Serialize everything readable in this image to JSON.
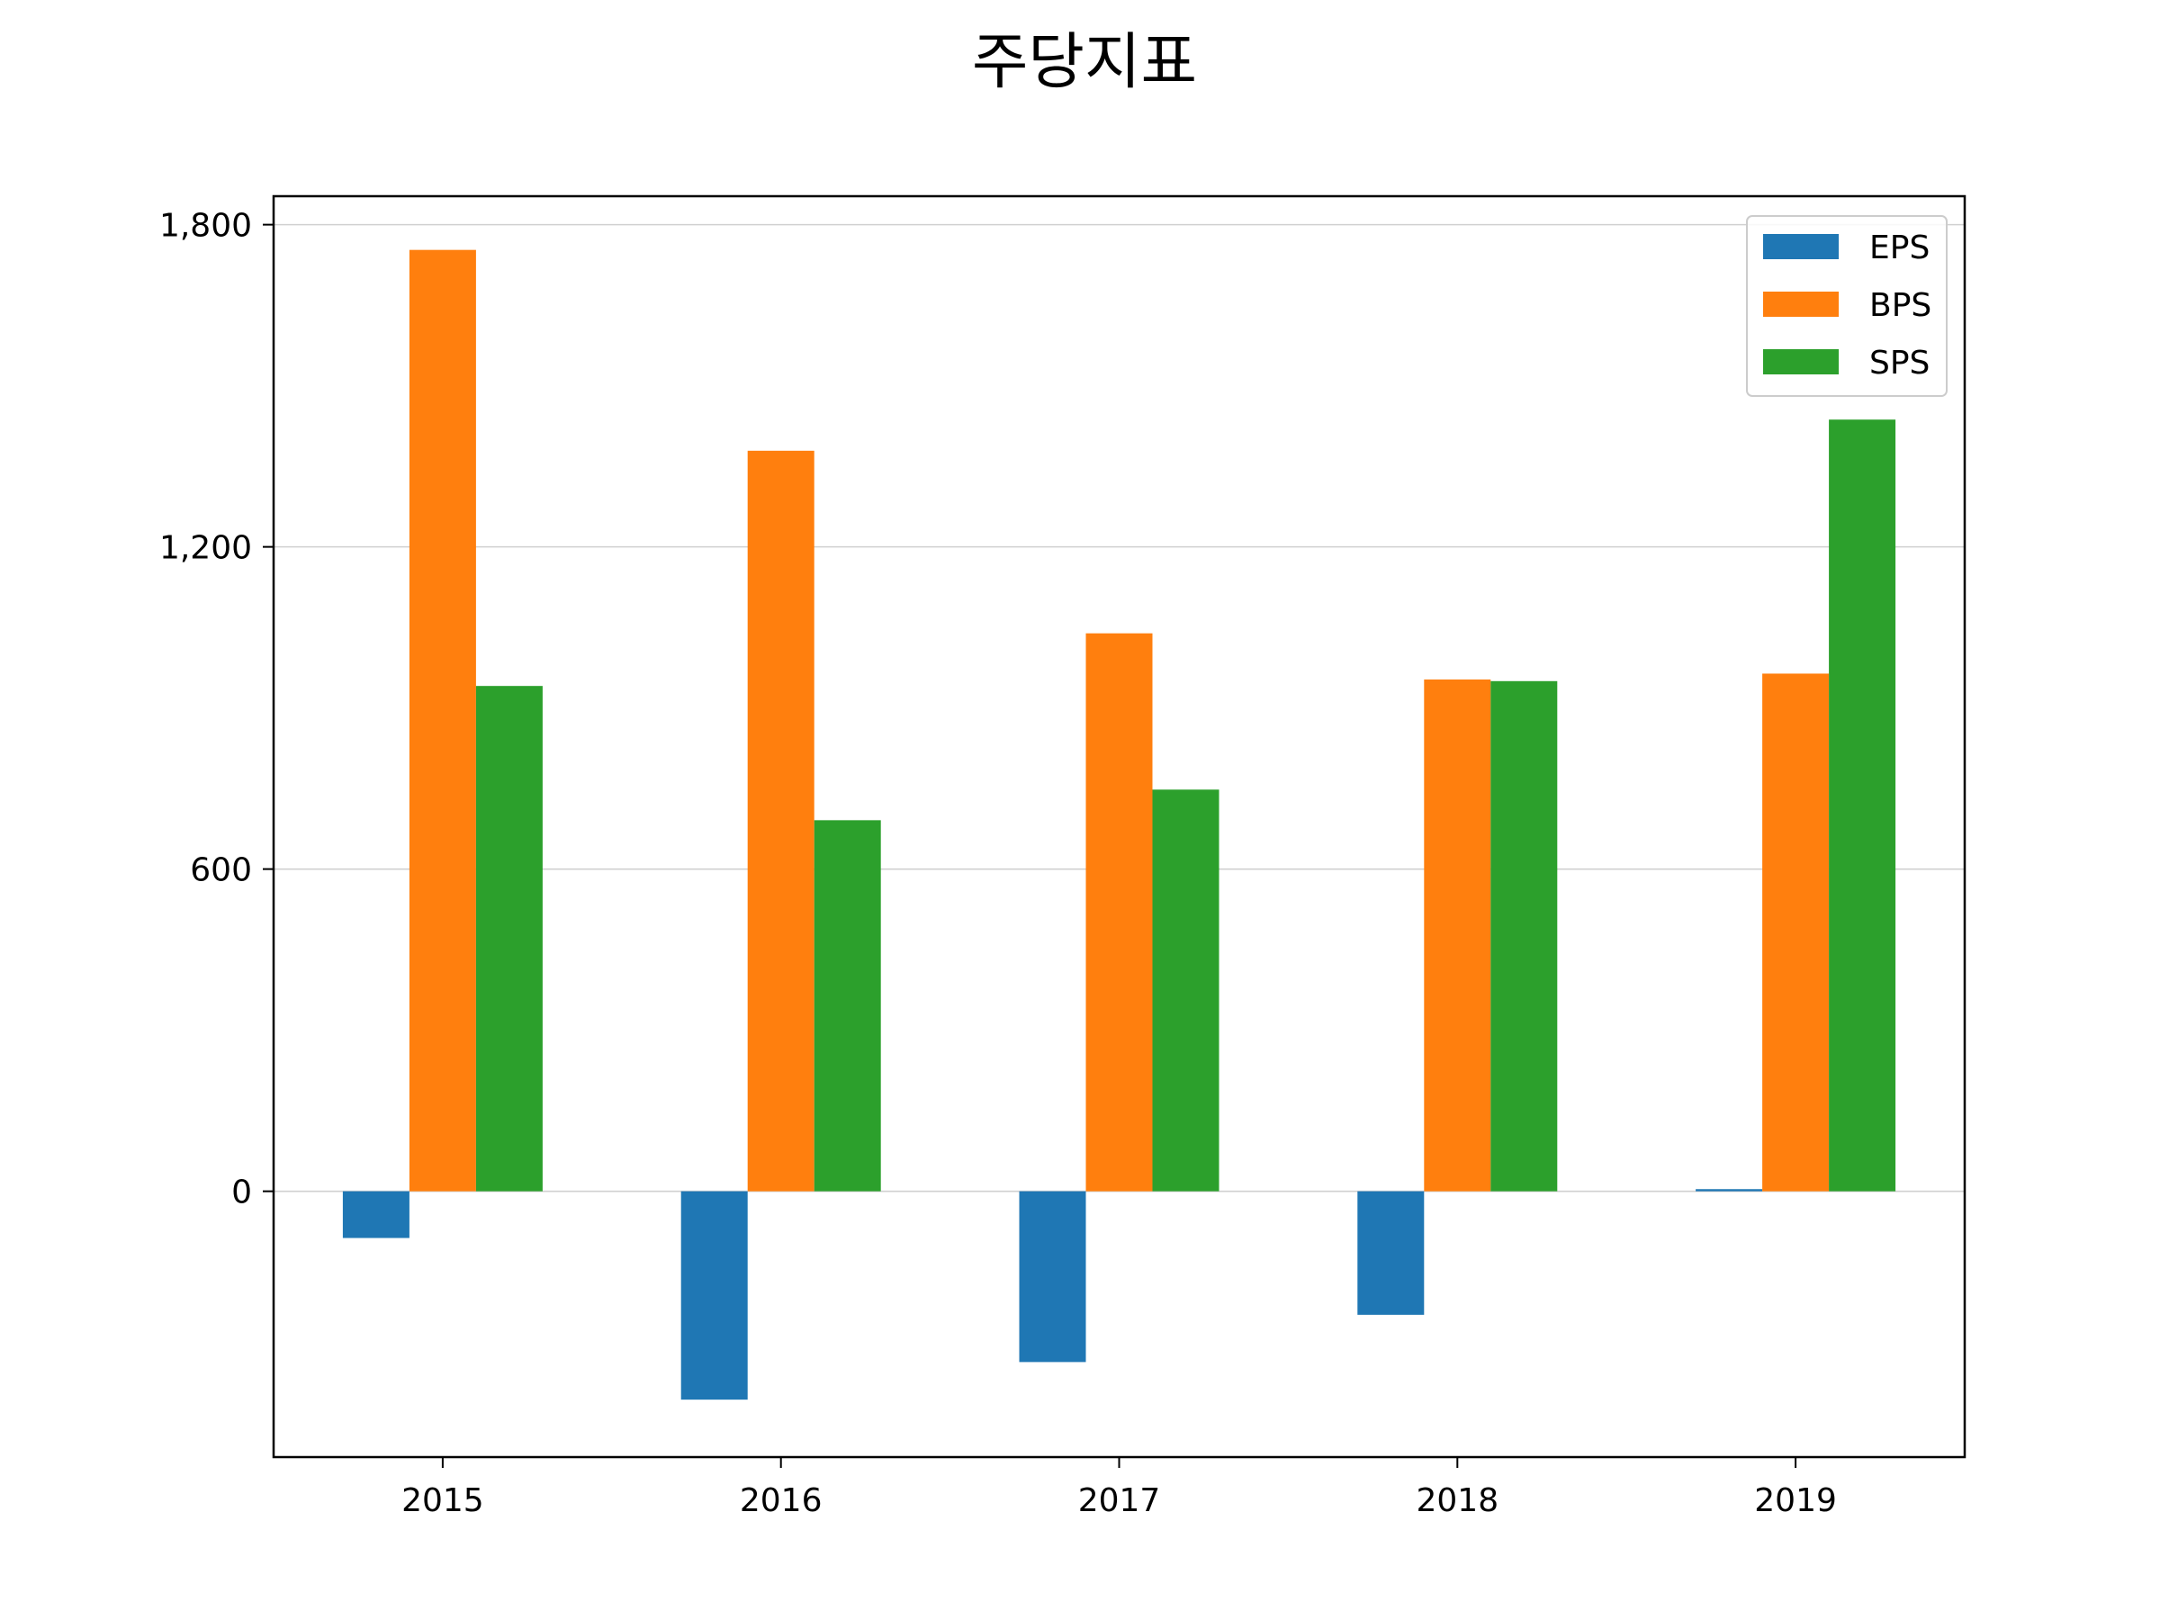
{
  "chart_data": {
    "type": "bar",
    "title": "주당지표",
    "xlabel": "",
    "ylabel": "",
    "categories": [
      "2015",
      "2016",
      "2017",
      "2018",
      "2019"
    ],
    "series": [
      {
        "name": "EPS",
        "color": "#1f77b4",
        "values": [
          -87,
          -388,
          -318,
          -230,
          4
        ]
      },
      {
        "name": "BPS",
        "color": "#ff7f0e",
        "values": [
          1753,
          1379,
          1039,
          953,
          964
        ]
      },
      {
        "name": "SPS",
        "color": "#2ca02c",
        "values": [
          941,
          691,
          748,
          950,
          1437
        ]
      }
    ],
    "ylim": [
      -495,
      1853
    ],
    "yticks": [
      0,
      600,
      1200,
      1800
    ],
    "ytick_labels": [
      "0",
      "600",
      "1,200",
      "1,800"
    ],
    "grid": true,
    "grid_axis": "y",
    "legend_position": "top-right"
  }
}
